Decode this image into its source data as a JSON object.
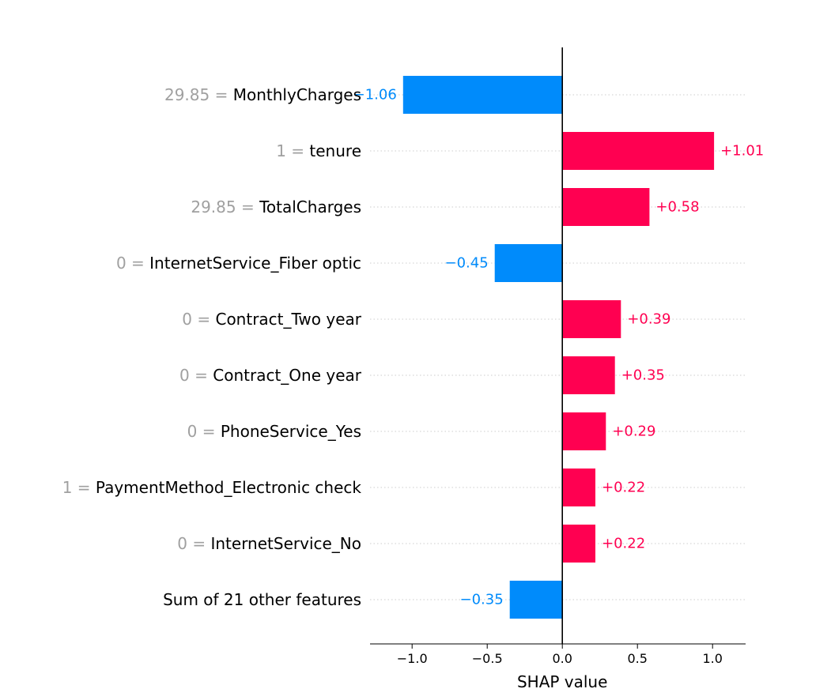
{
  "chart_data": {
    "type": "bar",
    "orientation": "horizontal",
    "xlabel": "SHAP value",
    "xlim": [
      -1.28,
      1.22
    ],
    "xticks": [
      -1.0,
      -0.5,
      0.0,
      0.5,
      1.0
    ],
    "xtick_labels": [
      "−1.0",
      "−0.5",
      "0.0",
      "0.5",
      "1.0"
    ],
    "grid": "dotted row guides",
    "colors": {
      "positive": "#ff0051",
      "negative": "#008bfb",
      "axis": "#000000",
      "guide": "#cccccc",
      "feature_value": "#a0a0a0"
    },
    "rows": [
      {
        "feature_value": "29.85",
        "feature": "MonthlyCharges",
        "value": -1.06,
        "label": "−1.06"
      },
      {
        "feature_value": "1",
        "feature": "tenure",
        "value": 1.01,
        "label": "+1.01"
      },
      {
        "feature_value": "29.85",
        "feature": "TotalCharges",
        "value": 0.58,
        "label": "+0.58"
      },
      {
        "feature_value": "0",
        "feature": "InternetService_Fiber optic",
        "value": -0.45,
        "label": "−0.45"
      },
      {
        "feature_value": "0",
        "feature": "Contract_Two year",
        "value": 0.39,
        "label": "+0.39"
      },
      {
        "feature_value": "0",
        "feature": "Contract_One year",
        "value": 0.35,
        "label": "+0.35"
      },
      {
        "feature_value": "0",
        "feature": "PhoneService_Yes",
        "value": 0.29,
        "label": "+0.29"
      },
      {
        "feature_value": "1",
        "feature": "PaymentMethod_Electronic check",
        "value": 0.22,
        "label": "+0.22"
      },
      {
        "feature_value": "0",
        "feature": "InternetService_No",
        "value": 0.22,
        "label": "+0.22"
      },
      {
        "feature_value": "",
        "feature": "Sum of 21 other features",
        "value": -0.35,
        "label": "−0.35"
      }
    ]
  }
}
